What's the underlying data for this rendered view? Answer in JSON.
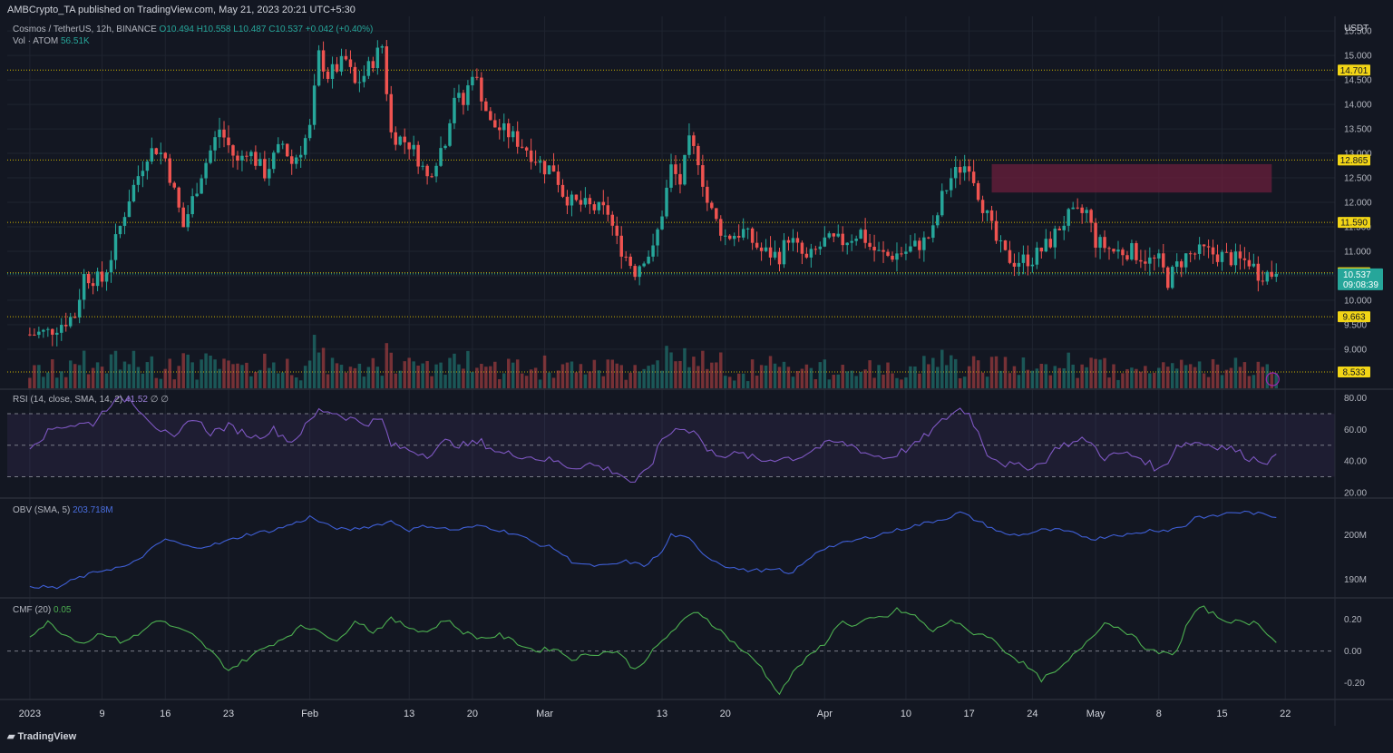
{
  "header": {
    "published": "AMBCrypto_TA published on TradingView.com, May 21, 2023 20:21 UTC+5:30"
  },
  "legend": {
    "symbol": "Cosmos / TetherUS, 12h, BINANCE",
    "ohlc": "O10.494 H10.558 L10.487 C10.537 +0.042 (+0.40%)",
    "vol_label": "Vol · ATOM",
    "vol_value": "56.51K",
    "rsi_label": "RSI (14, close, SMA, 14, 2)",
    "rsi_value": "41.52",
    "obv_label": "OBV (SMA, 5)",
    "obv_value": "203.718M",
    "cmf_label": "CMF (20)",
    "cmf_value": "0.05"
  },
  "footer": {
    "brand": "TradingView"
  },
  "colors": {
    "background": "#131722",
    "up": "#26a69a",
    "down": "#ef5350",
    "level_line": "#c9b000",
    "level_badge": "#f2d516",
    "zone": "#6b1f3c",
    "rsi_line": "#7e57c2",
    "obv_line": "#3f5fd6",
    "cmf_line": "#4caf50"
  },
  "chart_data": [
    {
      "type": "candlestick",
      "title": "Cosmos / TetherUS, 12h, BINANCE",
      "axis_unit": "USDT",
      "ylim": [
        8.2,
        15.8
      ],
      "y_ticks": [
        "9.000",
        "9.500",
        "10.000",
        "10.500",
        "11.000",
        "11.500",
        "12.000",
        "12.500",
        "13.000",
        "13.500",
        "14.000",
        "14.500",
        "15.000",
        "15.500"
      ],
      "x_ticks": [
        {
          "label": "2023",
          "t": 0
        },
        {
          "label": "9",
          "t": 16
        },
        {
          "label": "16",
          "t": 30
        },
        {
          "label": "23",
          "t": 44
        },
        {
          "label": "Feb",
          "t": 62
        },
        {
          "label": "13",
          "t": 84
        },
        {
          "label": "20",
          "t": 98
        },
        {
          "label": "Mar",
          "t": 114
        },
        {
          "label": "13",
          "t": 140
        },
        {
          "label": "20",
          "t": 154
        },
        {
          "label": "Apr",
          "t": 176
        },
        {
          "label": "10",
          "t": 194
        },
        {
          "label": "17",
          "t": 208
        },
        {
          "label": "24",
          "t": 222
        },
        {
          "label": "May",
          "t": 236
        },
        {
          "label": "8",
          "t": 250
        },
        {
          "label": "15",
          "t": 264
        },
        {
          "label": "22",
          "t": 278
        }
      ],
      "t_range": [
        -5,
        289
      ],
      "key_levels": [
        14.701,
        12.865,
        11.59,
        10.561,
        9.663,
        8.533
      ],
      "last_price": "10.537",
      "countdown": "09:08:39",
      "supply_zone": {
        "t_start": 213,
        "t_end": 275,
        "low": 12.2,
        "high": 12.78
      },
      "anchors": [
        [
          0,
          9.3
        ],
        [
          4,
          9.35
        ],
        [
          10,
          9.7
        ],
        [
          12,
          10.5
        ],
        [
          16,
          10.4
        ],
        [
          18,
          10.9
        ],
        [
          22,
          12.1
        ],
        [
          26,
          13.0
        ],
        [
          28,
          13.1
        ],
        [
          30,
          12.9
        ],
        [
          34,
          11.5
        ],
        [
          38,
          12.6
        ],
        [
          42,
          13.5
        ],
        [
          46,
          12.8
        ],
        [
          48,
          13.1
        ],
        [
          52,
          12.6
        ],
        [
          56,
          13.2
        ],
        [
          58,
          12.8
        ],
        [
          60,
          13.1
        ],
        [
          62,
          13.5
        ],
        [
          64,
          15.0
        ],
        [
          66,
          14.6
        ],
        [
          70,
          14.9
        ],
        [
          72,
          14.4
        ],
        [
          74,
          14.6
        ],
        [
          78,
          15.2
        ],
        [
          80,
          13.4
        ],
        [
          84,
          13.2
        ],
        [
          86,
          12.9
        ],
        [
          88,
          12.5
        ],
        [
          92,
          13.3
        ],
        [
          94,
          14.2
        ],
        [
          96,
          14.0
        ],
        [
          98,
          14.7
        ],
        [
          100,
          14.2
        ],
        [
          102,
          13.6
        ],
        [
          106,
          13.4
        ],
        [
          110,
          13.1
        ],
        [
          114,
          12.7
        ],
        [
          116,
          12.7
        ],
        [
          118,
          12.2
        ],
        [
          120,
          12.0
        ],
        [
          124,
          11.9
        ],
        [
          128,
          11.8
        ],
        [
          130,
          11.2
        ],
        [
          134,
          10.6
        ],
        [
          136,
          10.9
        ],
        [
          138,
          11.0
        ],
        [
          140,
          11.8
        ],
        [
          142,
          12.7
        ],
        [
          144,
          12.4
        ],
        [
          146,
          13.2
        ],
        [
          148,
          12.9
        ],
        [
          150,
          12.0
        ],
        [
          152,
          11.6
        ],
        [
          154,
          11.3
        ],
        [
          158,
          11.4
        ],
        [
          162,
          11.0
        ],
        [
          166,
          10.9
        ],
        [
          168,
          11.3
        ],
        [
          172,
          10.8
        ],
        [
          176,
          11.2
        ],
        [
          180,
          11.2
        ],
        [
          184,
          11.4
        ],
        [
          186,
          11.1
        ],
        [
          188,
          10.95
        ],
        [
          190,
          10.9
        ],
        [
          194,
          11.0
        ],
        [
          198,
          11.2
        ],
        [
          200,
          11.4
        ],
        [
          202,
          12.1
        ],
        [
          204,
          12.5
        ],
        [
          206,
          12.7
        ],
        [
          208,
          12.8
        ],
        [
          210,
          12.2
        ],
        [
          212,
          11.7
        ],
        [
          214,
          11.2
        ],
        [
          216,
          10.9
        ],
        [
          218,
          10.8
        ],
        [
          222,
          10.85
        ],
        [
          226,
          11.2
        ],
        [
          228,
          11.5
        ],
        [
          230,
          11.7
        ],
        [
          234,
          11.8
        ],
        [
          236,
          11.2
        ],
        [
          240,
          11.0
        ],
        [
          244,
          11.0
        ],
        [
          248,
          10.8
        ],
        [
          250,
          10.8
        ],
        [
          252,
          10.4
        ],
        [
          254,
          10.7
        ],
        [
          256,
          10.9
        ],
        [
          260,
          11.0
        ],
        [
          264,
          10.9
        ],
        [
          268,
          10.8
        ],
        [
          270,
          10.8
        ],
        [
          272,
          10.55
        ],
        [
          276,
          10.54
        ]
      ]
    },
    {
      "type": "bar",
      "title": "Vol · ATOM",
      "last_value": "56.51K"
    },
    {
      "type": "line",
      "title": "RSI (14, close, SMA, 14, 2)",
      "ylim": [
        17,
        85
      ],
      "y_ticks": [
        "20.00",
        "40.00",
        "60.00",
        "80.00"
      ],
      "bands": {
        "upper": 70,
        "middle": 50,
        "lower": 30
      },
      "last_value": "41.52",
      "anchors": [
        [
          0,
          50
        ],
        [
          6,
          62
        ],
        [
          14,
          64
        ],
        [
          18,
          77
        ],
        [
          22,
          80
        ],
        [
          28,
          62
        ],
        [
          32,
          53
        ],
        [
          36,
          68
        ],
        [
          40,
          58
        ],
        [
          44,
          62
        ],
        [
          50,
          55
        ],
        [
          54,
          60
        ],
        [
          58,
          52
        ],
        [
          62,
          65
        ],
        [
          64,
          72
        ],
        [
          66,
          72
        ],
        [
          70,
          68
        ],
        [
          74,
          64
        ],
        [
          78,
          66
        ],
        [
          80,
          50
        ],
        [
          84,
          47
        ],
        [
          88,
          44
        ],
        [
          92,
          52
        ],
        [
          96,
          50
        ],
        [
          100,
          52
        ],
        [
          104,
          45
        ],
        [
          108,
          44
        ],
        [
          112,
          42
        ],
        [
          116,
          40
        ],
        [
          120,
          36
        ],
        [
          124,
          38
        ],
        [
          130,
          33
        ],
        [
          134,
          25
        ],
        [
          138,
          40
        ],
        [
          140,
          54
        ],
        [
          144,
          62
        ],
        [
          148,
          57
        ],
        [
          150,
          46
        ],
        [
          154,
          44
        ],
        [
          158,
          44
        ],
        [
          162,
          40
        ],
        [
          166,
          42
        ],
        [
          170,
          42
        ],
        [
          174,
          48
        ],
        [
          178,
          52
        ],
        [
          182,
          50
        ],
        [
          186,
          44
        ],
        [
          190,
          42
        ],
        [
          196,
          50
        ],
        [
          200,
          60
        ],
        [
          204,
          70
        ],
        [
          206,
          73
        ],
        [
          208,
          70
        ],
        [
          210,
          58
        ],
        [
          212,
          45
        ],
        [
          216,
          38
        ],
        [
          220,
          36
        ],
        [
          224,
          38
        ],
        [
          228,
          50
        ],
        [
          232,
          52
        ],
        [
          234,
          54
        ],
        [
          238,
          42
        ],
        [
          242,
          45
        ],
        [
          246,
          42
        ],
        [
          250,
          34
        ],
        [
          252,
          40
        ],
        [
          254,
          50
        ],
        [
          258,
          52
        ],
        [
          262,
          50
        ],
        [
          266,
          48
        ],
        [
          270,
          42
        ],
        [
          274,
          40
        ],
        [
          276,
          42
        ]
      ]
    },
    {
      "type": "line",
      "title": "OBV (SMA, 5)",
      "y_ticks": [
        "190M",
        "200M"
      ],
      "ylim": [
        186,
        208
      ],
      "last_value": "203.718M",
      "anchors": [
        [
          0,
          188.5
        ],
        [
          6,
          188
        ],
        [
          10,
          190
        ],
        [
          16,
          192
        ],
        [
          22,
          193
        ],
        [
          30,
          199
        ],
        [
          36,
          197
        ],
        [
          42,
          198
        ],
        [
          48,
          200
        ],
        [
          54,
          201
        ],
        [
          60,
          203
        ],
        [
          62,
          204
        ],
        [
          66,
          202
        ],
        [
          70,
          201
        ],
        [
          76,
          202
        ],
        [
          80,
          203
        ],
        [
          84,
          201
        ],
        [
          88,
          202
        ],
        [
          94,
          201
        ],
        [
          100,
          202
        ],
        [
          104,
          201
        ],
        [
          108,
          200
        ],
        [
          112,
          198
        ],
        [
          116,
          197
        ],
        [
          120,
          194
        ],
        [
          124,
          193
        ],
        [
          128,
          193
        ],
        [
          132,
          194
        ],
        [
          136,
          193
        ],
        [
          140,
          196
        ],
        [
          142,
          200
        ],
        [
          146,
          199
        ],
        [
          150,
          195
        ],
        [
          154,
          193
        ],
        [
          158,
          192
        ],
        [
          162,
          192
        ],
        [
          166,
          192
        ],
        [
          168,
          191
        ],
        [
          172,
          194
        ],
        [
          174,
          196
        ],
        [
          176,
          197
        ],
        [
          180,
          198
        ],
        [
          184,
          199
        ],
        [
          188,
          200
        ],
        [
          192,
          201
        ],
        [
          196,
          202
        ],
        [
          200,
          203
        ],
        [
          204,
          204
        ],
        [
          206,
          205
        ],
        [
          208,
          204
        ],
        [
          210,
          203
        ],
        [
          212,
          202
        ],
        [
          216,
          200
        ],
        [
          220,
          200
        ],
        [
          224,
          201
        ],
        [
          228,
          201
        ],
        [
          232,
          200
        ],
        [
          236,
          199
        ],
        [
          240,
          200
        ],
        [
          244,
          200
        ],
        [
          248,
          201
        ],
        [
          252,
          201
        ],
        [
          256,
          202
        ],
        [
          258,
          204
        ],
        [
          262,
          204
        ],
        [
          266,
          205
        ],
        [
          270,
          205
        ],
        [
          276,
          204
        ]
      ]
    },
    {
      "type": "line",
      "title": "CMF (20)",
      "ylim": [
        -0.3,
        0.33
      ],
      "y_ticks": [
        "0.20",
        "0.00",
        "-0.20"
      ],
      "zero_line": 0,
      "last_value": "0.05",
      "anchors": [
        [
          0,
          0.1
        ],
        [
          4,
          0.18
        ],
        [
          8,
          0.1
        ],
        [
          12,
          0.05
        ],
        [
          16,
          0.12
        ],
        [
          20,
          0.06
        ],
        [
          24,
          0.1
        ],
        [
          28,
          0.2
        ],
        [
          32,
          0.15
        ],
        [
          36,
          0.1
        ],
        [
          40,
          0.0
        ],
        [
          44,
          -0.12
        ],
        [
          48,
          -0.05
        ],
        [
          52,
          0.02
        ],
        [
          56,
          0.08
        ],
        [
          60,
          0.15
        ],
        [
          64,
          0.14
        ],
        [
          68,
          0.05
        ],
        [
          72,
          0.2
        ],
        [
          76,
          0.12
        ],
        [
          80,
          0.2
        ],
        [
          84,
          0.15
        ],
        [
          88,
          0.12
        ],
        [
          92,
          0.2
        ],
        [
          96,
          0.12
        ],
        [
          100,
          0.08
        ],
        [
          104,
          0.1
        ],
        [
          108,
          0.05
        ],
        [
          112,
          0.0
        ],
        [
          116,
          0.02
        ],
        [
          120,
          -0.05
        ],
        [
          124,
          -0.02
        ],
        [
          130,
          0.0
        ],
        [
          134,
          -0.12
        ],
        [
          138,
          0.0
        ],
        [
          142,
          0.12
        ],
        [
          146,
          0.22
        ],
        [
          148,
          0.25
        ],
        [
          150,
          0.2
        ],
        [
          154,
          0.1
        ],
        [
          158,
          0.0
        ],
        [
          162,
          -0.1
        ],
        [
          164,
          -0.2
        ],
        [
          166,
          -0.26
        ],
        [
          170,
          -0.1
        ],
        [
          174,
          0.0
        ],
        [
          176,
          0.05
        ],
        [
          180,
          0.2
        ],
        [
          182,
          0.15
        ],
        [
          186,
          0.2
        ],
        [
          190,
          0.22
        ],
        [
          192,
          0.26
        ],
        [
          196,
          0.22
        ],
        [
          200,
          0.12
        ],
        [
          204,
          0.2
        ],
        [
          208,
          0.12
        ],
        [
          212,
          0.1
        ],
        [
          216,
          0.0
        ],
        [
          220,
          -0.08
        ],
        [
          224,
          -0.18
        ],
        [
          228,
          -0.12
        ],
        [
          232,
          0.0
        ],
        [
          236,
          0.12
        ],
        [
          238,
          0.18
        ],
        [
          242,
          0.14
        ],
        [
          246,
          0.05
        ],
        [
          248,
          0.0
        ],
        [
          252,
          -0.02
        ],
        [
          254,
          0.0
        ],
        [
          256,
          0.15
        ],
        [
          258,
          0.25
        ],
        [
          260,
          0.27
        ],
        [
          264,
          0.2
        ],
        [
          268,
          0.18
        ],
        [
          272,
          0.18
        ],
        [
          276,
          0.05
        ]
      ]
    }
  ]
}
